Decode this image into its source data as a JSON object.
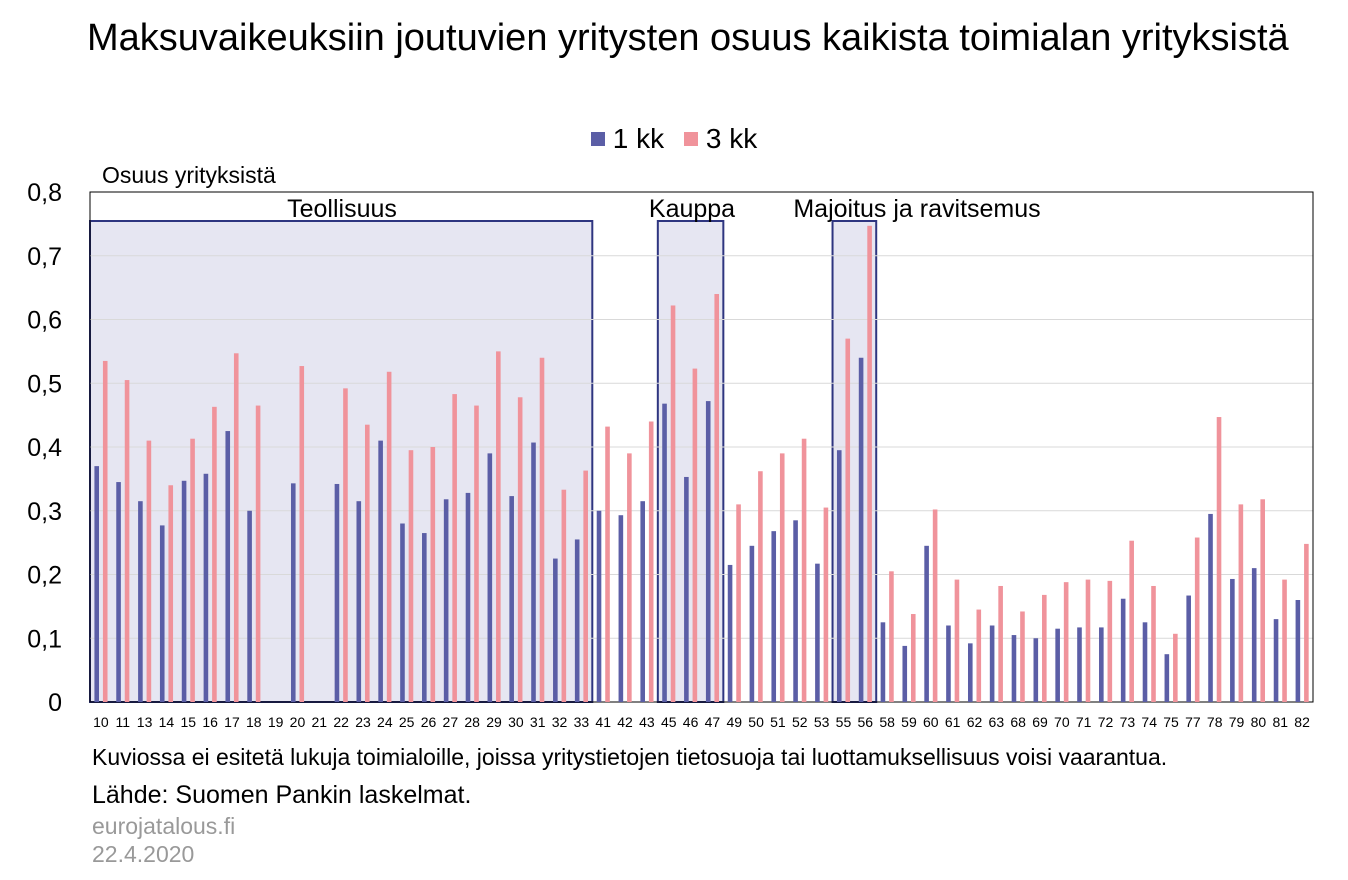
{
  "chart_data": {
    "type": "bar",
    "title": "Maksuvaikeuksiin joutuvien yritysten osuus kaikista toimialan yrityksistä",
    "ylabel": "Osuus yrityksistä",
    "xlabel": "",
    "ylim": [
      0,
      0.8
    ],
    "yticks": [
      "0",
      "0,1",
      "0,2",
      "0,3",
      "0,4",
      "0,5",
      "0,6",
      "0,7",
      "0,8"
    ],
    "grid": true,
    "legend_position": "top-center",
    "categories": [
      "10",
      "11",
      "13",
      "14",
      "15",
      "16",
      "17",
      "18",
      "19",
      "20",
      "21",
      "22",
      "23",
      "24",
      "25",
      "26",
      "27",
      "28",
      "29",
      "30",
      "31",
      "32",
      "33",
      "41",
      "42",
      "43",
      "45",
      "46",
      "47",
      "49",
      "50",
      "51",
      "52",
      "53",
      "55",
      "56",
      "58",
      "59",
      "60",
      "61",
      "62",
      "63",
      "68",
      "69",
      "70",
      "71",
      "72",
      "73",
      "74",
      "75",
      "77",
      "78",
      "79",
      "80",
      "81",
      "82"
    ],
    "series": [
      {
        "name": "1 kk",
        "color": "#5b5ea6",
        "values": [
          0.37,
          0.345,
          0.315,
          0.277,
          0.347,
          0.358,
          0.425,
          0.3,
          null,
          0.343,
          null,
          0.342,
          0.315,
          0.41,
          0.28,
          0.265,
          0.318,
          0.328,
          0.39,
          0.323,
          0.407,
          0.225,
          0.255,
          0.3,
          0.293,
          0.315,
          0.468,
          0.353,
          0.472,
          0.215,
          0.245,
          0.268,
          0.285,
          0.217,
          0.395,
          0.54,
          0.125,
          0.088,
          0.245,
          0.12,
          0.092,
          0.12,
          0.105,
          0.1,
          0.115,
          0.117,
          0.117,
          0.162,
          0.125,
          0.075,
          0.167,
          0.295,
          0.193,
          0.21,
          0.13,
          0.16
        ]
      },
      {
        "name": "3 kk",
        "color": "#f0939b",
        "values": [
          0.535,
          0.505,
          0.41,
          0.34,
          0.413,
          0.463,
          0.547,
          0.465,
          null,
          0.527,
          null,
          0.492,
          0.435,
          0.518,
          0.395,
          0.4,
          0.483,
          0.465,
          0.55,
          0.478,
          0.54,
          0.333,
          0.363,
          0.432,
          0.39,
          0.44,
          0.622,
          0.523,
          0.64,
          0.31,
          0.362,
          0.39,
          0.413,
          0.305,
          0.57,
          0.747,
          0.205,
          0.138,
          0.302,
          0.192,
          0.145,
          0.182,
          0.142,
          0.168,
          0.188,
          0.192,
          0.19,
          0.253,
          0.182,
          0.107,
          0.258,
          0.447,
          0.31,
          0.318,
          0.192,
          0.248
        ]
      }
    ],
    "annotations": [
      {
        "label": "Teollisuus",
        "from": "10",
        "to": "33"
      },
      {
        "label": "Kauppa",
        "from": "45",
        "to": "47"
      },
      {
        "label": "Majoitus ja ravitsemus",
        "from": "55",
        "to": "56"
      }
    ]
  },
  "footnotes": {
    "note": "Kuviossa ei esitetä lukuja toimialoille, joissa yritystietojen tietosuoja tai luottamuksellisuus voisi vaarantua.",
    "source": "Lähde: Suomen Pankin laskelmat.",
    "brand": "eurojatalous.fi",
    "date": "22.4.2020"
  },
  "colors": {
    "highlight_fill": "#e6e6f2",
    "highlight_border": "#2e3580",
    "grid": "#d9d9d9"
  }
}
